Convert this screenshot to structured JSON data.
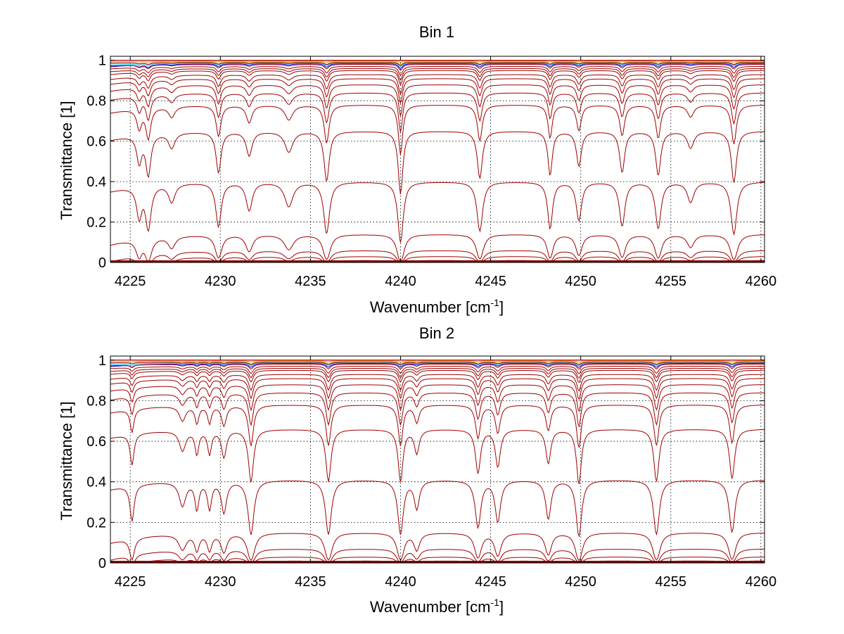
{
  "figure": {
    "background": "#ffffff",
    "trace_color": "#a00000",
    "hot_colors": [
      "#ff0000",
      "#ff8000",
      "#ffd000",
      "#00d0ff",
      "#0000ff"
    ]
  },
  "chart_data": [
    {
      "type": "line",
      "title": "Bin 1",
      "xlabel": "Wavenumber [cm",
      "xlabel_sup": "-1",
      "xlabel_close": "]",
      "ylabel": "Transmittance [1]",
      "xlim": [
        4223.9,
        4260.2
      ],
      "ylim": [
        0,
        1.02
      ],
      "grid": true,
      "xticks": [
        4225,
        4230,
        4235,
        4240,
        4245,
        4250,
        4255,
        4260
      ],
      "xtick_labels": [
        "4225",
        "4230",
        "4235",
        "4240",
        "4245",
        "4250",
        "4255",
        "4260"
      ],
      "yticks": [
        0,
        0.2,
        0.4,
        0.6,
        0.8,
        1
      ],
      "ytick_labels": [
        "0",
        "0.2",
        "0.4",
        "0.6",
        "0.8",
        "1"
      ],
      "series_description": "family of transmittance spectra for increasing path length",
      "baseline_levels": [
        1.0,
        0.99,
        0.98,
        0.97,
        0.96,
        0.95,
        0.93,
        0.91,
        0.88,
        0.84,
        0.78,
        0.65,
        0.4,
        0.14,
        0.06,
        0.03,
        0.01,
        0.003
      ],
      "absorption_lines": [
        {
          "x": 4225.5,
          "depth": 0.35,
          "width": 0.15
        },
        {
          "x": 4226.0,
          "depth": 0.55,
          "width": 0.15
        },
        {
          "x": 4227.3,
          "depth": 0.18,
          "width": 0.2
        },
        {
          "x": 4229.9,
          "depth": 0.55,
          "width": 0.15
        },
        {
          "x": 4231.6,
          "depth": 0.3,
          "width": 0.18
        },
        {
          "x": 4233.8,
          "depth": 0.25,
          "width": 0.25
        },
        {
          "x": 4235.9,
          "depth": 0.7,
          "width": 0.15
        },
        {
          "x": 4240.0,
          "depth": 0.95,
          "width": 0.13
        },
        {
          "x": 4244.4,
          "depth": 0.65,
          "width": 0.15
        },
        {
          "x": 4248.3,
          "depth": 0.6,
          "width": 0.13
        },
        {
          "x": 4249.9,
          "depth": 0.45,
          "width": 0.15
        },
        {
          "x": 4252.3,
          "depth": 0.55,
          "width": 0.15
        },
        {
          "x": 4254.3,
          "depth": 0.6,
          "width": 0.15
        },
        {
          "x": 4256.1,
          "depth": 0.2,
          "width": 0.2
        },
        {
          "x": 4258.5,
          "depth": 0.72,
          "width": 0.15
        }
      ]
    },
    {
      "type": "line",
      "title": "Bin 2",
      "xlabel": "Wavenumber [cm",
      "xlabel_sup": "-1",
      "xlabel_close": "]",
      "ylabel": "Transmittance [1]",
      "xlim": [
        4223.9,
        4260.2
      ],
      "ylim": [
        0,
        1.02
      ],
      "grid": true,
      "xticks": [
        4225,
        4230,
        4235,
        4240,
        4245,
        4250,
        4255,
        4260
      ],
      "xtick_labels": [
        "4225",
        "4230",
        "4235",
        "4240",
        "4245",
        "4250",
        "4255",
        "4260"
      ],
      "yticks": [
        0,
        0.2,
        0.4,
        0.6,
        0.8,
        1
      ],
      "ytick_labels": [
        "0",
        "0.2",
        "0.4",
        "0.6",
        "0.8",
        "1"
      ],
      "series_description": "family of transmittance spectra for increasing path length",
      "baseline_levels": [
        1.0,
        0.99,
        0.98,
        0.97,
        0.96,
        0.95,
        0.93,
        0.91,
        0.88,
        0.84,
        0.78,
        0.66,
        0.41,
        0.15,
        0.07,
        0.03,
        0.01,
        0.003
      ],
      "absorption_lines": [
        {
          "x": 4225.1,
          "depth": 0.4,
          "width": 0.12
        },
        {
          "x": 4227.9,
          "depth": 0.25,
          "width": 0.2
        },
        {
          "x": 4228.7,
          "depth": 0.3,
          "width": 0.12
        },
        {
          "x": 4229.4,
          "depth": 0.3,
          "width": 0.12
        },
        {
          "x": 4230.2,
          "depth": 0.35,
          "width": 0.15
        },
        {
          "x": 4231.7,
          "depth": 0.75,
          "width": 0.15
        },
        {
          "x": 4236.0,
          "depth": 0.75,
          "width": 0.15
        },
        {
          "x": 4240.0,
          "depth": 0.75,
          "width": 0.14
        },
        {
          "x": 4240.9,
          "depth": 0.3,
          "width": 0.15
        },
        {
          "x": 4244.3,
          "depth": 0.6,
          "width": 0.15
        },
        {
          "x": 4245.4,
          "depth": 0.5,
          "width": 0.15
        },
        {
          "x": 4248.2,
          "depth": 0.45,
          "width": 0.15
        },
        {
          "x": 4249.9,
          "depth": 0.8,
          "width": 0.14
        },
        {
          "x": 4254.2,
          "depth": 0.75,
          "width": 0.15
        },
        {
          "x": 4258.4,
          "depth": 0.7,
          "width": 0.15
        }
      ]
    }
  ]
}
